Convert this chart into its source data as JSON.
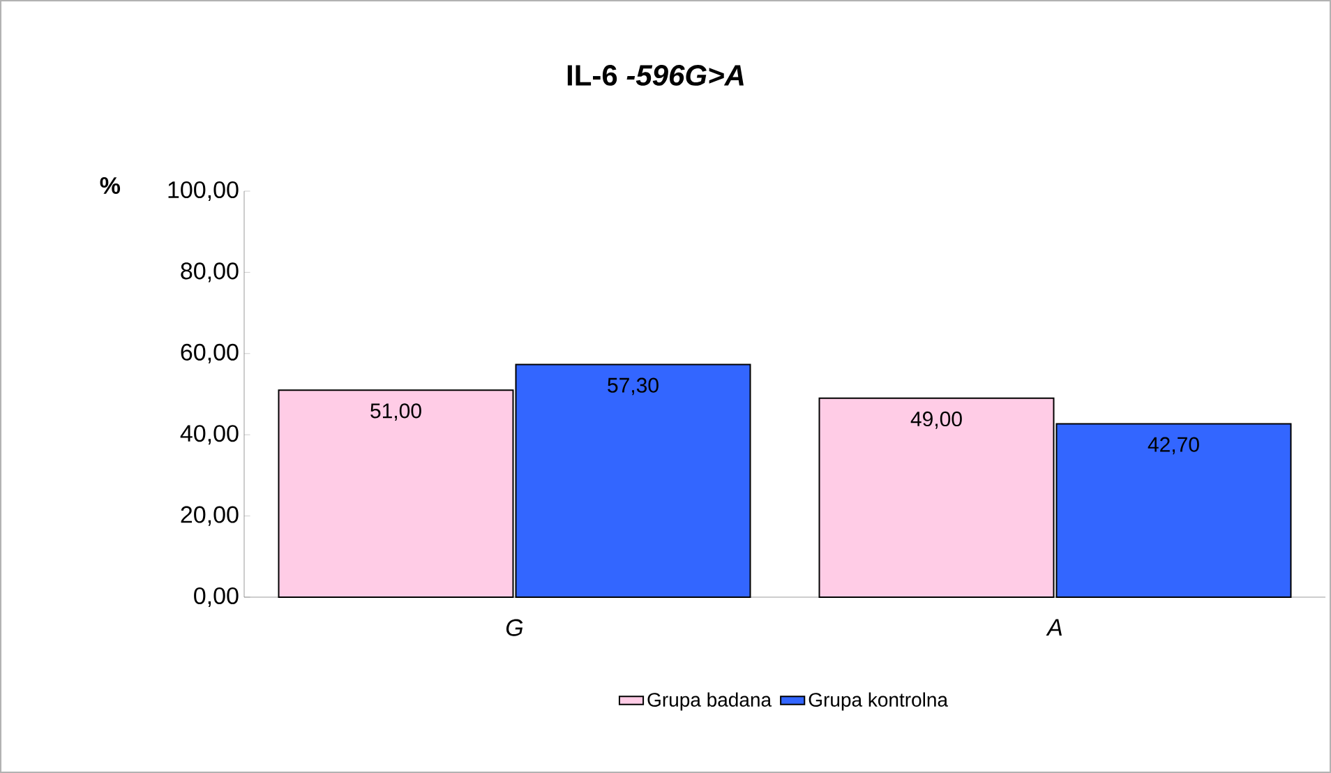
{
  "chart_data": {
    "type": "bar",
    "title": "IL-6 *-596G>A*",
    "ylabel": "%",
    "categories": [
      "G",
      "A"
    ],
    "series": [
      {
        "name": "Grupa badana",
        "color": "#ffcce6",
        "values": [
          51.0,
          49.0
        ],
        "value_labels": [
          "51,00",
          "49,00"
        ]
      },
      {
        "name": "Grupa kontrolna",
        "color": "#3366ff",
        "values": [
          57.3,
          42.7
        ],
        "value_labels": [
          "57,30",
          "42,70"
        ]
      }
    ],
    "ylim": [
      0,
      100
    ],
    "yticks": [
      {
        "value": 0,
        "label": "0,00"
      },
      {
        "value": 20,
        "label": "20,00"
      },
      {
        "value": 40,
        "label": "40,00"
      },
      {
        "value": 60,
        "label": "60,00"
      },
      {
        "value": 80,
        "label": "80,00"
      },
      {
        "value": 100,
        "label": "100,00"
      }
    ],
    "grid": false,
    "legend": "bottom"
  }
}
